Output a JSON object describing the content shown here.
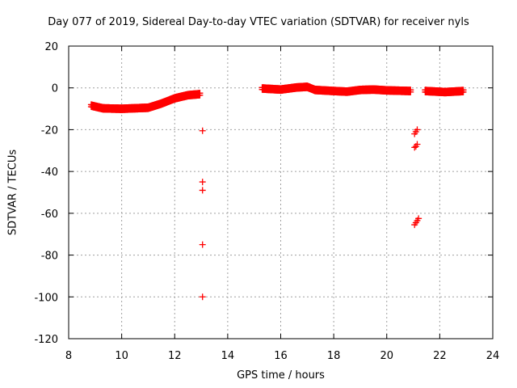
{
  "chart_data": {
    "type": "scatter",
    "title": "Day 077 of 2019, Sidereal Day-to-day VTEC variation (SDTVAR) for receiver nyls",
    "xlabel": "GPS time / hours",
    "ylabel": "SDTVAR / TECUs",
    "xlim": [
      8,
      24
    ],
    "ylim": [
      -120,
      20
    ],
    "xticks": [
      8,
      10,
      12,
      14,
      16,
      18,
      20,
      22,
      24
    ],
    "yticks": [
      -120,
      -100,
      -80,
      -60,
      -40,
      -20,
      0,
      20
    ],
    "grid": true,
    "marker": "plus",
    "color": "#ff0000",
    "series": [
      {
        "name": "SDTVAR",
        "segments": [
          {
            "x0": 8.85,
            "x1": 12.95,
            "step": 0.02,
            "points": [
              [
                8.85,
                -8.5
              ],
              [
                9.3,
                -9.8
              ],
              [
                10.0,
                -10.0
              ],
              [
                11.0,
                -9.5
              ],
              [
                11.5,
                -7.5
              ],
              [
                12.0,
                -5.0
              ],
              [
                12.5,
                -3.5
              ],
              [
                12.95,
                -3.0
              ]
            ]
          },
          {
            "x0": 15.3,
            "x1": 20.9,
            "step": 0.02,
            "points": [
              [
                15.3,
                -0.3
              ],
              [
                16.0,
                -0.8
              ],
              [
                16.6,
                0.2
              ],
              [
                17.0,
                0.5
              ],
              [
                17.3,
                -1.0
              ],
              [
                18.0,
                -1.5
              ],
              [
                18.5,
                -1.8
              ],
              [
                19.0,
                -1.0
              ],
              [
                19.5,
                -0.8
              ],
              [
                20.0,
                -1.2
              ],
              [
                20.9,
                -1.5
              ]
            ]
          },
          {
            "x0": 21.45,
            "x1": 22.9,
            "step": 0.02,
            "points": [
              [
                21.45,
                -1.5
              ],
              [
                22.2,
                -2.0
              ],
              [
                22.9,
                -1.5
              ]
            ]
          }
        ],
        "outliers": [
          [
            13.05,
            -20.5
          ],
          [
            13.05,
            -45.0
          ],
          [
            13.05,
            -49.0
          ],
          [
            13.05,
            -75.0
          ],
          [
            13.05,
            -100.0
          ],
          [
            21.05,
            -22.0
          ],
          [
            21.1,
            -21.0
          ],
          [
            21.15,
            -20.0
          ],
          [
            21.05,
            -28.5
          ],
          [
            21.1,
            -28.0
          ],
          [
            21.15,
            -27.0
          ],
          [
            21.05,
            -65.5
          ],
          [
            21.1,
            -64.5
          ],
          [
            21.15,
            -63.5
          ],
          [
            21.2,
            -62.5
          ]
        ]
      }
    ]
  }
}
